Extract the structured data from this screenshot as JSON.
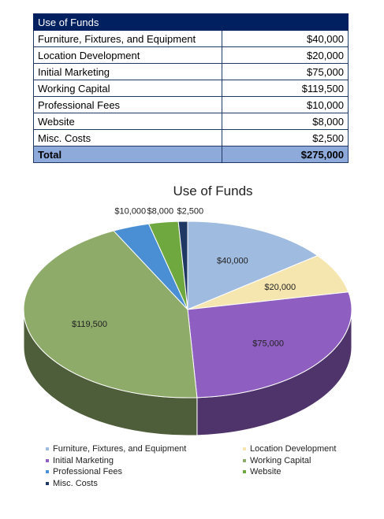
{
  "table": {
    "header": "Use of Funds",
    "rows": [
      {
        "label": "Furniture, Fixtures, and Equipment",
        "amount": "$40,000"
      },
      {
        "label": "Location Development",
        "amount": "$20,000"
      },
      {
        "label": "Initial Marketing",
        "amount": "$75,000"
      },
      {
        "label": "Working Capital",
        "amount": "$119,500"
      },
      {
        "label": "Professional Fees",
        "amount": "$10,000"
      },
      {
        "label": "Website",
        "amount": "$8,000"
      },
      {
        "label": "Misc. Costs",
        "amount": "$2,500"
      }
    ],
    "total_label": "Total",
    "total_amount": "$275,000"
  },
  "chart_data": {
    "type": "pie",
    "title": "Use of Funds",
    "categories": [
      "Furniture, Fixtures, and Equipment",
      "Location Development",
      "Initial Marketing",
      "Working Capital",
      "Professional Fees",
      "Website",
      "Misc. Costs"
    ],
    "values": [
      40000,
      20000,
      75000,
      119500,
      10000,
      8000,
      2500
    ],
    "labels": [
      "$40,000",
      "$20,000",
      "$75,000",
      "$119,500",
      "$10,000",
      "$8,000",
      "$2,500"
    ],
    "colors": [
      "#9fbbe0",
      "#f5e6b0",
      "#8e5fc0",
      "#8fab6a",
      "#4a8fd4",
      "#70a840",
      "#1f3864"
    ],
    "legend_position": "bottom",
    "three_d": true
  }
}
